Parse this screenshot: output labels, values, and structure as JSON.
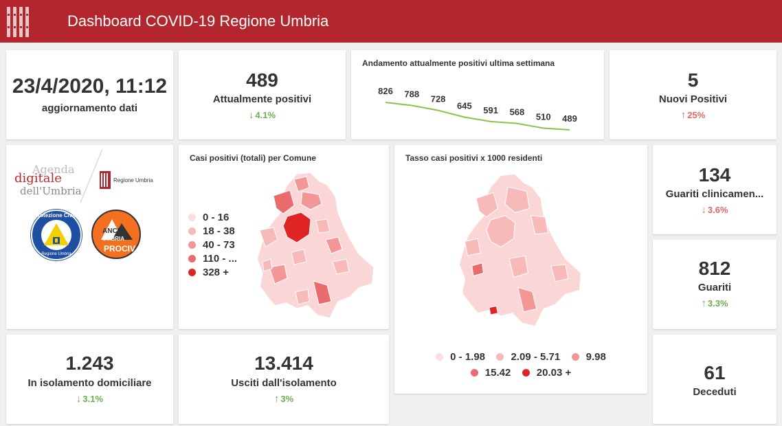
{
  "header": {
    "title": "Dashboard COVID-19 Regione Umbria"
  },
  "update": {
    "datetime": "23/4/2020, 11:12",
    "label": "aggiornamento dati"
  },
  "attuali": {
    "value": "489",
    "label": "Attualmente positivi",
    "delta": "4.1%",
    "direction": "down"
  },
  "trend": {
    "title": "Andamento attualmente positivi ultima settimana",
    "chart_data": {
      "type": "line",
      "values": [
        826,
        788,
        728,
        645,
        591,
        568,
        510,
        489
      ],
      "value_labels": [
        "826",
        "788",
        "728",
        "645",
        "591",
        "568",
        "510",
        "489"
      ],
      "color": "#8bc34a"
    }
  },
  "nuovi": {
    "value": "5",
    "label": "Nuovi Positivi",
    "delta": "25%",
    "direction": "up"
  },
  "logos": {
    "agenda": [
      "Agenda",
      "digitale",
      "dell'Umbria"
    ],
    "regione": "Regione Umbria",
    "protezione": [
      "Protezione Civile",
      "Regione Umbria"
    ],
    "anci": [
      "ANCI",
      "UMBRIA",
      "PROCIV"
    ]
  },
  "map_comune": {
    "title": "Casi positivi (totali) per Comune",
    "legend": [
      {
        "label": "0 - 16",
        "color": "#fcdede"
      },
      {
        "label": "18 - 38",
        "color": "#f8b9b9"
      },
      {
        "label": "40 - 73",
        "color": "#f29696"
      },
      {
        "label": "110 - ...",
        "color": "#e96b6b"
      },
      {
        "label": "328 +",
        "color": "#e02424"
      }
    ]
  },
  "map_tasso": {
    "title": "Tasso casi positivi x 1000 residenti",
    "legend": [
      {
        "label": "0 - 1.98",
        "color": "#fcdede"
      },
      {
        "label": "2.09 - 5.71",
        "color": "#f8b9b9"
      },
      {
        "label": "9.98",
        "color": "#f29696"
      },
      {
        "label": "15.42",
        "color": "#e96b6b"
      },
      {
        "label": "20.03 +",
        "color": "#e02424"
      }
    ]
  },
  "guariti_clin": {
    "value": "134",
    "label": "Guariti clinicamen...",
    "delta": "3.6%",
    "direction": "down"
  },
  "guariti": {
    "value": "812",
    "label": "Guariti",
    "delta": "3.3%",
    "direction": "up"
  },
  "isolamento": {
    "value": "1.243",
    "label": "In isolamento domiciliare",
    "delta": "3.1%",
    "direction": "down"
  },
  "usciti": {
    "value": "13.414",
    "label": "Usciti dall'isolamento",
    "delta": "3%",
    "direction": "up"
  },
  "deceduti": {
    "value": "61",
    "label": "Deceduti"
  },
  "arrows": {
    "up": "↑",
    "down": "↓"
  }
}
